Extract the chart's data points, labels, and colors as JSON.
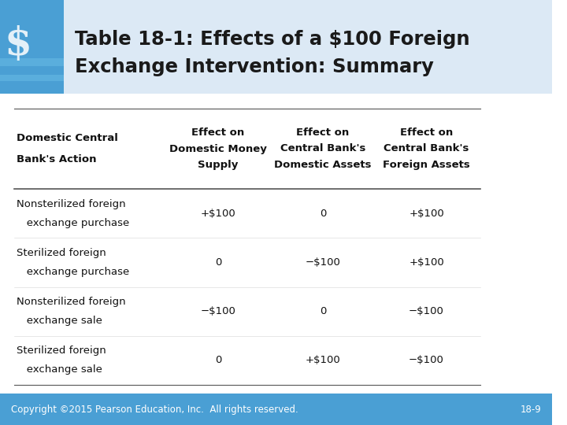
{
  "title_line1": "Table 18-1: Effects of a $100 Foreign",
  "title_line2": "Exchange Intervention: Summary",
  "title_color": "#1a1a1a",
  "title_bg_color": "#dce9f5",
  "bg_color": "#ffffff",
  "footer_bg_color": "#4a9fd4",
  "footer_text": "Copyright ©2015 Pearson Education, Inc.  All rights reserved.",
  "footer_page": "18-9",
  "rows": [
    {
      "action_line1": "Nonsterilized foreign",
      "action_line2": "   exchange purchase",
      "col2": "+$100",
      "col3": "0",
      "col4": "+$100"
    },
    {
      "action_line1": "Sterilized foreign",
      "action_line2": "   exchange purchase",
      "col2": "0",
      "col3": "−$100",
      "col4": "+$100"
    },
    {
      "action_line1": "Nonsterilized foreign",
      "action_line2": "   exchange sale",
      "col2": "−$100",
      "col3": "0",
      "col4": "−$100"
    },
    {
      "action_line1": "Sterilized foreign",
      "action_line2": "   exchange sale",
      "col2": "0",
      "col3": "+$100",
      "col4": "−$100"
    }
  ],
  "logo_color1": "#4a9fd4",
  "line_color": "#555555",
  "header_font_size": 9.5,
  "row_font_size": 9.5,
  "title_font_size": 17.5,
  "footer_font_size": 8.5
}
